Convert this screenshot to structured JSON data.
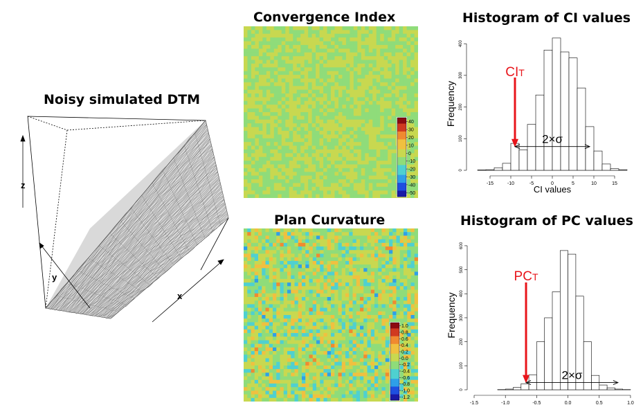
{
  "colors": {
    "annotation": "#e8141a",
    "map_palette": [
      "#1a1aa6",
      "#1f4fe0",
      "#2f9fe8",
      "#4fd0d0",
      "#8fdc7a",
      "#c8d850",
      "#f0c040",
      "#f08a30",
      "#d03a20",
      "#8c0a10"
    ]
  },
  "dtm": {
    "title": "Noisy simulated DTM",
    "axis_labels": {
      "z": "z",
      "y": "y",
      "x": "x"
    }
  },
  "ci_map": {
    "title": "Convergence Index",
    "colorbar": {
      "ticks": [
        "40",
        "30",
        "20",
        "10",
        "0",
        "-10",
        "-20",
        "-30",
        "-40",
        "-50"
      ]
    }
  },
  "pc_map": {
    "title": "Plan Curvature",
    "colorbar": {
      "ticks": [
        "1.0",
        "0.8",
        "0.6",
        "0.4",
        "0.2",
        "0.0",
        "-0.2",
        "-0.4",
        "-0.6",
        "-0.8",
        "-1.0",
        "-1.2"
      ]
    }
  },
  "chart_data": [
    {
      "type": "bar",
      "title": "Histogram of CI values",
      "xlabel": "CI values",
      "ylabel": "Frequency",
      "x_ticks": [
        "-15",
        "-10",
        "-5",
        "0",
        "5",
        "10",
        "15"
      ],
      "y_ticks": [
        "0",
        "100",
        "200",
        "300",
        "400"
      ],
      "xlim": [
        -19,
        19
      ],
      "ylim": [
        0,
        420
      ],
      "bin_width": 2,
      "bin_starts": [
        -18,
        -16,
        -14,
        -12,
        -10,
        -8,
        -6,
        -4,
        -2,
        0,
        2,
        4,
        6,
        8,
        10,
        12,
        14,
        16
      ],
      "values": [
        1,
        2,
        8,
        22,
        85,
        65,
        145,
        238,
        380,
        418,
        374,
        355,
        260,
        138,
        61,
        20,
        5,
        2
      ],
      "threshold": {
        "label": "CI",
        "subscript": "T",
        "x": -9
      },
      "spread": {
        "label": "2×σ",
        "x_from": -9,
        "x_to": 9,
        "y": 75
      }
    },
    {
      "type": "bar",
      "title": "Histogram of PC values",
      "xlabel": "PC values",
      "ylabel": "Frequency",
      "x_ticks": [
        "-1.5",
        "-1.0",
        "-0.5",
        "0.0",
        "0.5",
        "1.0"
      ],
      "y_ticks": [
        "0",
        "100",
        "200",
        "300",
        "400",
        "500",
        "600"
      ],
      "xlim": [
        -1.5,
        1.1
      ],
      "ylim": [
        0,
        620
      ],
      "bin_width": 0.125,
      "bin_starts": [
        -1.125,
        -1.0,
        -0.875,
        -0.75,
        -0.625,
        -0.5,
        -0.375,
        -0.25,
        -0.125,
        0.0,
        0.125,
        0.25,
        0.375,
        0.5,
        0.625,
        0.75,
        0.875
      ],
      "values": [
        1,
        3,
        10,
        25,
        62,
        200,
        300,
        408,
        580,
        565,
        390,
        200,
        60,
        20,
        8,
        3,
        1
      ],
      "threshold": {
        "label": "PC",
        "subscript": "T",
        "x": -0.67
      },
      "spread": {
        "label": "2×σ",
        "x_from": -0.67,
        "x_to": 0.8,
        "y": 30
      }
    }
  ]
}
